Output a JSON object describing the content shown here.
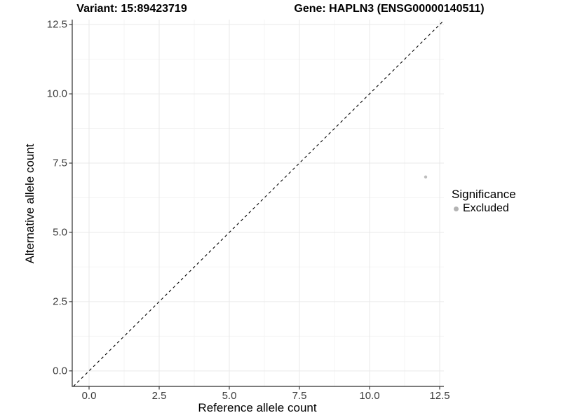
{
  "chart_data": {
    "type": "scatter",
    "titles": [
      "Variant: 15:89423719",
      "Gene: HAPLN3 (ENSG00000140511)"
    ],
    "xlabel": "Reference allele count",
    "ylabel": "Alternative allele count",
    "xlim": [
      -0.6,
      12.65
    ],
    "ylim": [
      -0.56,
      12.68
    ],
    "x_ticks": [
      0,
      2.5,
      5,
      7.5,
      10,
      12.5
    ],
    "y_ticks": [
      0,
      2.5,
      5,
      7.5,
      10,
      12.5
    ],
    "x_tick_labels": [
      "0.0",
      "2.5",
      "5.0",
      "7.5",
      "10.0",
      "12.5"
    ],
    "y_tick_labels": [
      "0.0",
      "2.5",
      "5.0",
      "7.5",
      "10.0",
      "12.5"
    ],
    "x_minor_ticks": [
      1.25,
      3.75,
      6.25,
      8.75,
      11.25
    ],
    "y_minor_ticks": [
      1.25,
      3.75,
      6.25,
      8.75,
      11.25
    ],
    "grid": "major+minor",
    "series": [
      {
        "name": "Excluded",
        "color": "#bdbdbd",
        "points": [
          {
            "x": 12,
            "y": 7
          }
        ]
      }
    ],
    "reference_line": {
      "kind": "identity y=x",
      "style": "dashed",
      "color": "#000000"
    },
    "legend": {
      "title": "Significance",
      "position": "right",
      "items": [
        {
          "label": "Excluded",
          "color": "#b3b3b3"
        }
      ]
    }
  },
  "colors": {
    "background": "#ffffff",
    "grid_major": "#e9e9e9",
    "grid_minor": "#f4f4f4",
    "axis_line": "#2e2e2e",
    "tick_mark": "#2e2e2e",
    "tick_text": "#3c3c3c",
    "point": "#c4c4c4",
    "dashed_line": "#000000"
  }
}
